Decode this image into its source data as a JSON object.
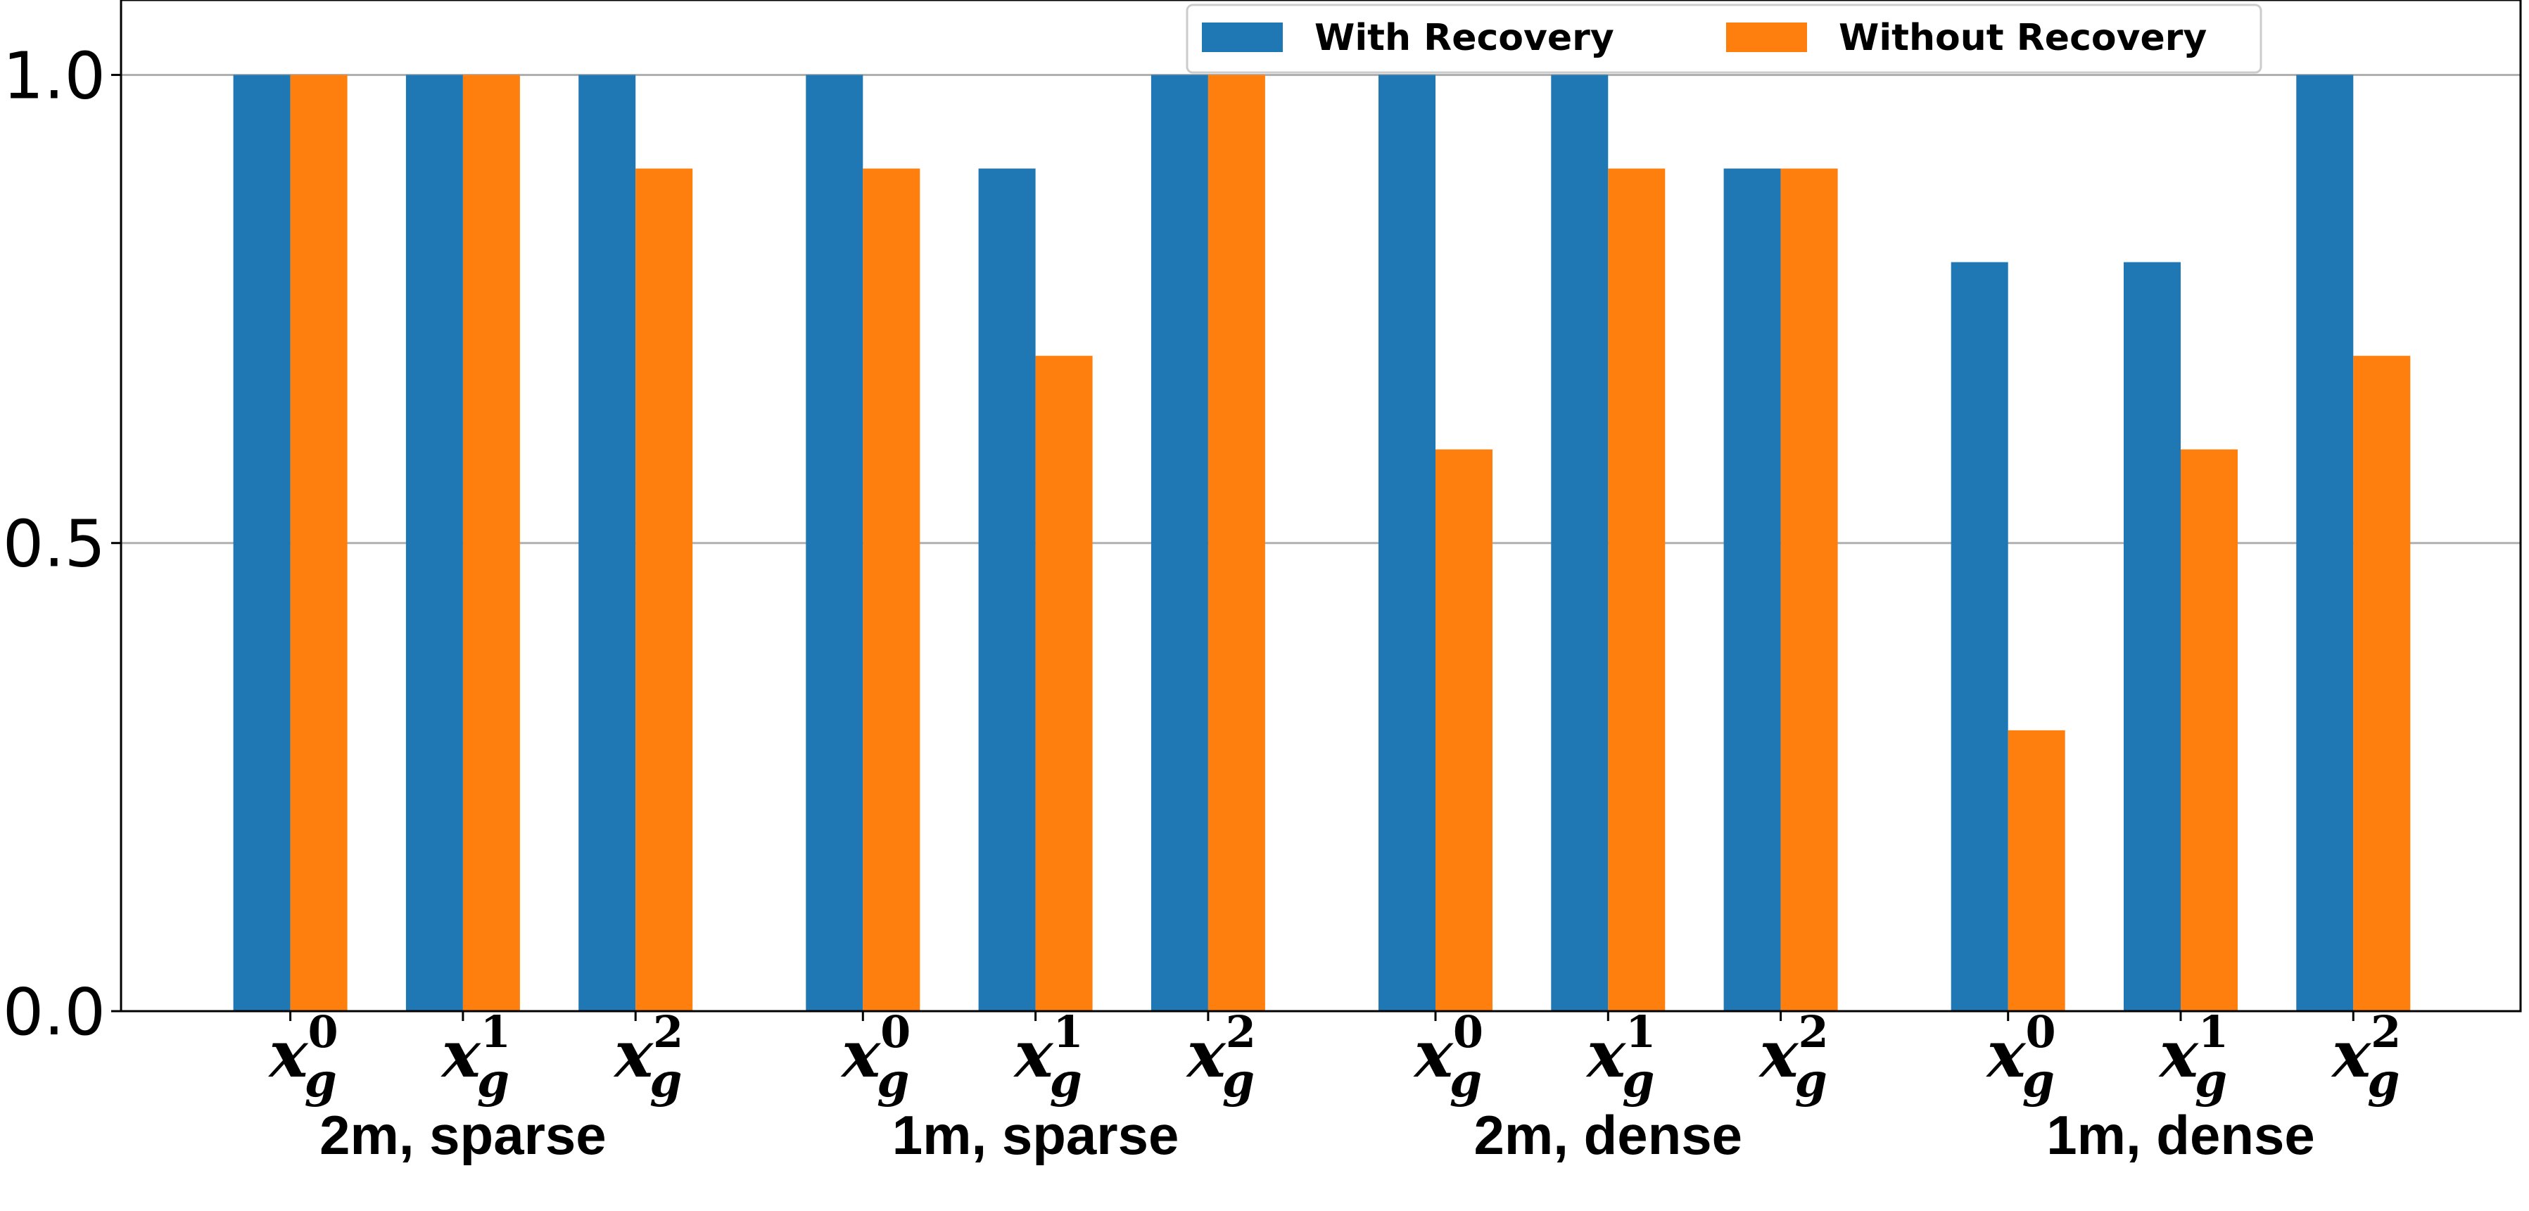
{
  "chart_data": {
    "type": "bar",
    "categories": [
      {
        "base": "x",
        "sub": "g",
        "sup": "0"
      },
      {
        "base": "x",
        "sub": "g",
        "sup": "1"
      },
      {
        "base": "x",
        "sub": "g",
        "sup": "2"
      },
      {
        "base": "x",
        "sub": "g",
        "sup": "0"
      },
      {
        "base": "x",
        "sub": "g",
        "sup": "1"
      },
      {
        "base": "x",
        "sub": "g",
        "sup": "2"
      },
      {
        "base": "x",
        "sub": "g",
        "sup": "0"
      },
      {
        "base": "x",
        "sub": "g",
        "sup": "1"
      },
      {
        "base": "x",
        "sub": "g",
        "sup": "2"
      },
      {
        "base": "x",
        "sub": "g",
        "sup": "0"
      },
      {
        "base": "x",
        "sub": "g",
        "sup": "1"
      },
      {
        "base": "x",
        "sub": "g",
        "sup": "2"
      }
    ],
    "groups": [
      "2m, sparse",
      "1m, sparse",
      "2m, dense",
      "1m, dense"
    ],
    "series": [
      {
        "name": "With Recovery",
        "color": "#1f77b4",
        "values": [
          1.0,
          1.0,
          1.0,
          1.0,
          0.9,
          1.0,
          1.0,
          1.0,
          0.9,
          0.8,
          0.8,
          1.0
        ]
      },
      {
        "name": "Without Recovery",
        "color": "#ff7f0e",
        "values": [
          1.0,
          1.0,
          0.9,
          0.9,
          0.7,
          1.0,
          0.6,
          0.9,
          0.9,
          0.3,
          0.6,
          0.7
        ]
      }
    ],
    "ylim": [
      0,
      1.08
    ],
    "yticks": [
      0.0,
      0.5,
      1.0
    ],
    "grid": true,
    "legend": "upper right"
  }
}
